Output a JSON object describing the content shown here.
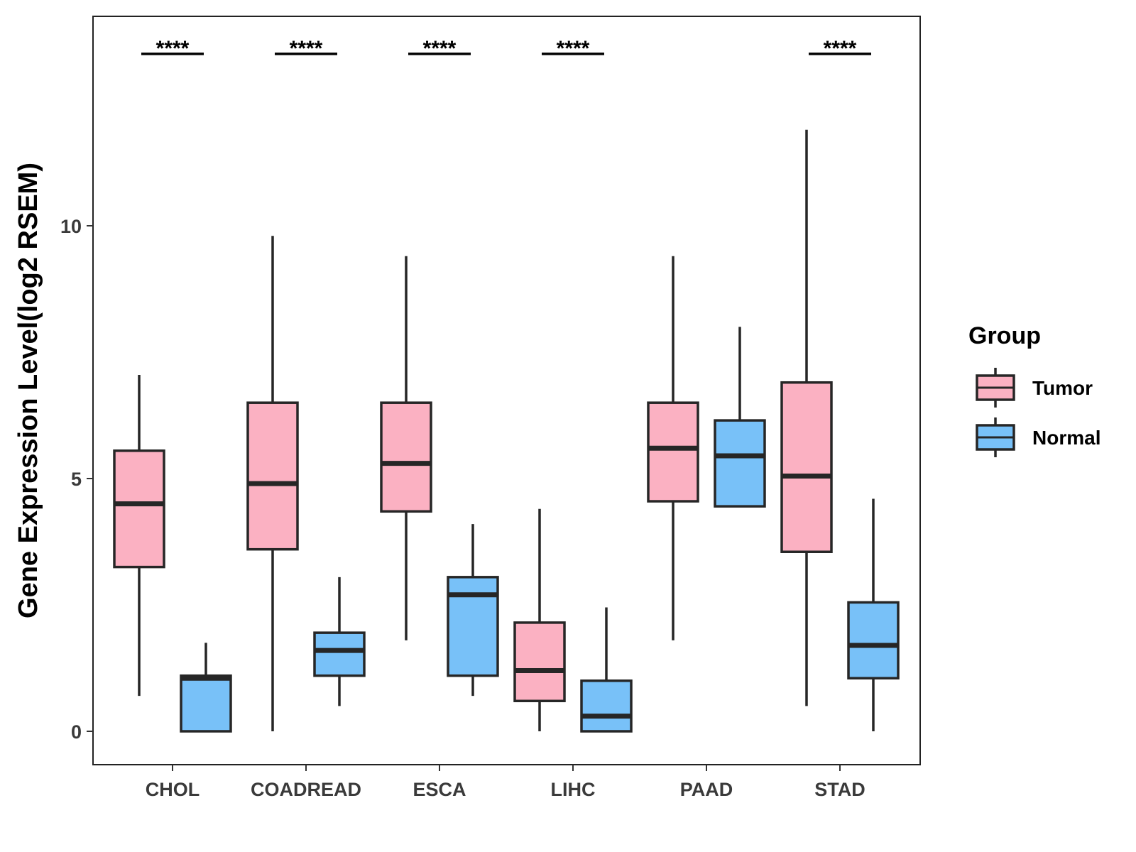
{
  "chart_data": {
    "type": "boxplot",
    "title": "",
    "xlabel": "",
    "ylabel": "Gene Expression Level(log2 RSEM)",
    "ylim": [
      -0.65,
      14.15
    ],
    "yticks": [
      0,
      5,
      10
    ],
    "categories": [
      "CHOL",
      "COADREAD",
      "ESCA",
      "LIHC",
      "PAAD",
      "STAD"
    ],
    "legend": {
      "title": "Group",
      "position": "right"
    },
    "series": [
      {
        "name": "Tumor",
        "color": "#FBB1C2",
        "boxes": [
          {
            "category": "CHOL",
            "min": 0.7,
            "q1": 3.25,
            "median": 4.5,
            "q3": 5.55,
            "max": 7.05
          },
          {
            "category": "COADREAD",
            "min": 0.0,
            "q1": 3.6,
            "median": 4.9,
            "q3": 6.5,
            "max": 9.8
          },
          {
            "category": "ESCA",
            "min": 1.8,
            "q1": 4.35,
            "median": 5.3,
            "q3": 6.5,
            "max": 9.4
          },
          {
            "category": "LIHC",
            "min": 0.0,
            "q1": 0.6,
            "median": 1.2,
            "q3": 2.15,
            "max": 4.4
          },
          {
            "category": "PAAD",
            "min": 1.8,
            "q1": 4.55,
            "median": 5.6,
            "q3": 6.5,
            "max": 9.4
          },
          {
            "category": "STAD",
            "min": 0.5,
            "q1": 3.55,
            "median": 5.05,
            "q3": 6.9,
            "max": 11.9
          }
        ]
      },
      {
        "name": "Normal",
        "color": "#78C1F8",
        "boxes": [
          {
            "category": "CHOL",
            "min": 0.0,
            "q1": 0.0,
            "median": 1.05,
            "q3": 1.1,
            "max": 1.75
          },
          {
            "category": "COADREAD",
            "min": 0.5,
            "q1": 1.1,
            "median": 1.6,
            "q3": 1.95,
            "max": 3.05
          },
          {
            "category": "ESCA",
            "min": 0.7,
            "q1": 1.1,
            "median": 2.7,
            "q3": 3.05,
            "max": 4.1
          },
          {
            "category": "LIHC",
            "min": 0.0,
            "q1": 0.0,
            "median": 0.3,
            "q3": 1.0,
            "max": 2.45
          },
          {
            "category": "PAAD",
            "min": 4.45,
            "q1": 4.45,
            "median": 5.45,
            "q3": 6.15,
            "max": 8.0
          },
          {
            "category": "STAD",
            "min": 0.0,
            "q1": 1.05,
            "median": 1.7,
            "q3": 2.55,
            "max": 4.6
          }
        ]
      }
    ],
    "significance": [
      {
        "category": "CHOL",
        "label": "****"
      },
      {
        "category": "COADREAD",
        "label": "****"
      },
      {
        "category": "ESCA",
        "label": "****"
      },
      {
        "category": "LIHC",
        "label": "****"
      },
      {
        "category": "STAD",
        "label": "****"
      }
    ],
    "significance_y": 13.4
  }
}
